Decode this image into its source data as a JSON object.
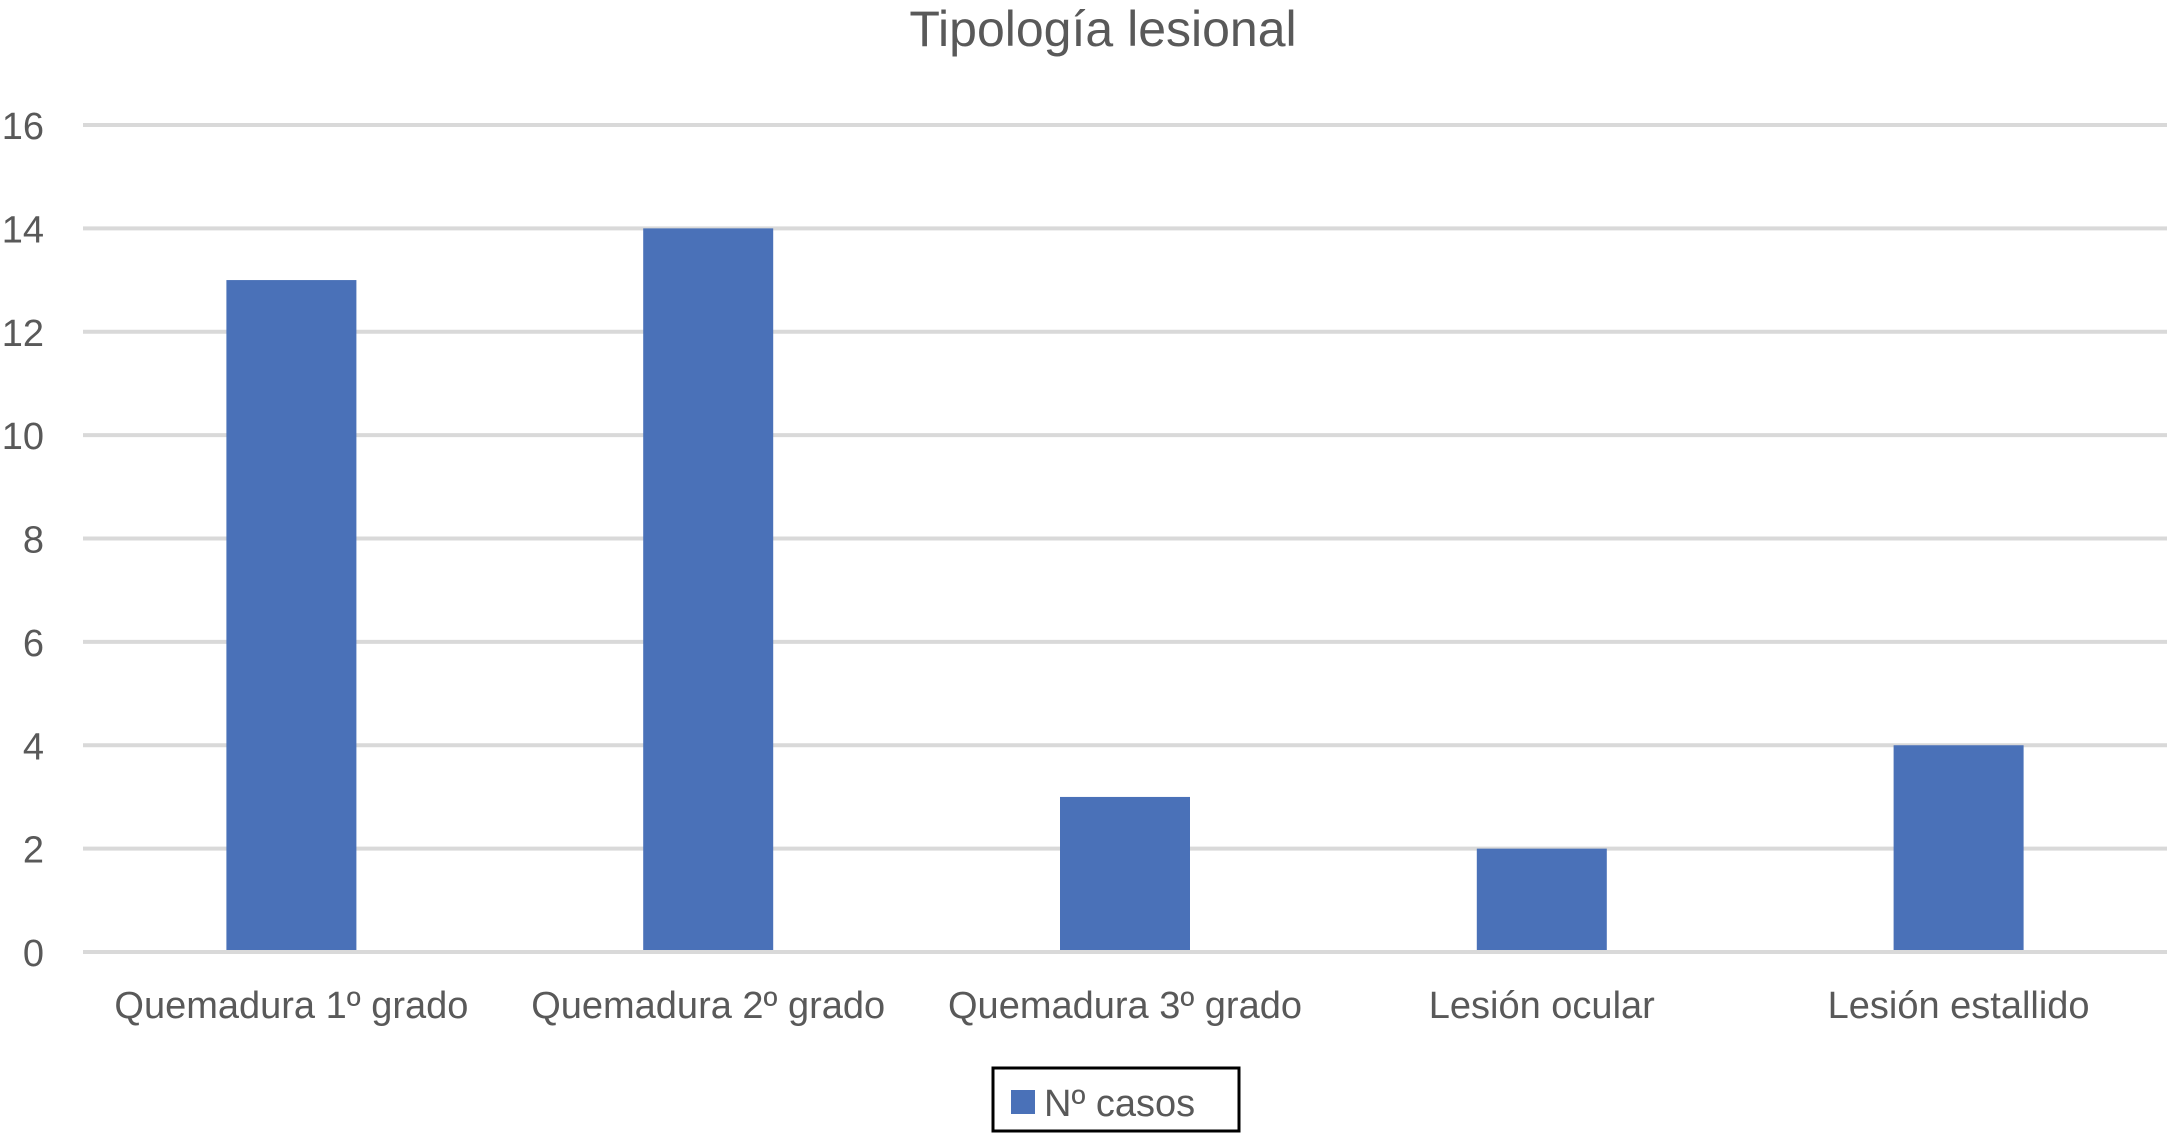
{
  "chart_data": {
    "type": "bar",
    "title": "Tipología lesional",
    "xlabel": "",
    "ylabel": "",
    "categories": [
      "Quemadura 1º grado",
      "Quemadura 2º grado",
      "Quemadura 3º grado",
      "Lesión ocular",
      "Lesión estallido"
    ],
    "series": [
      {
        "name": "Nº casos",
        "values": [
          13,
          14,
          3,
          2,
          4
        ],
        "color": "#4a71b8"
      }
    ],
    "ylim": [
      0,
      16
    ],
    "yticks": [
      0,
      2,
      4,
      6,
      8,
      10,
      12,
      14,
      16
    ],
    "grid": true,
    "legend": "bottom-center"
  }
}
